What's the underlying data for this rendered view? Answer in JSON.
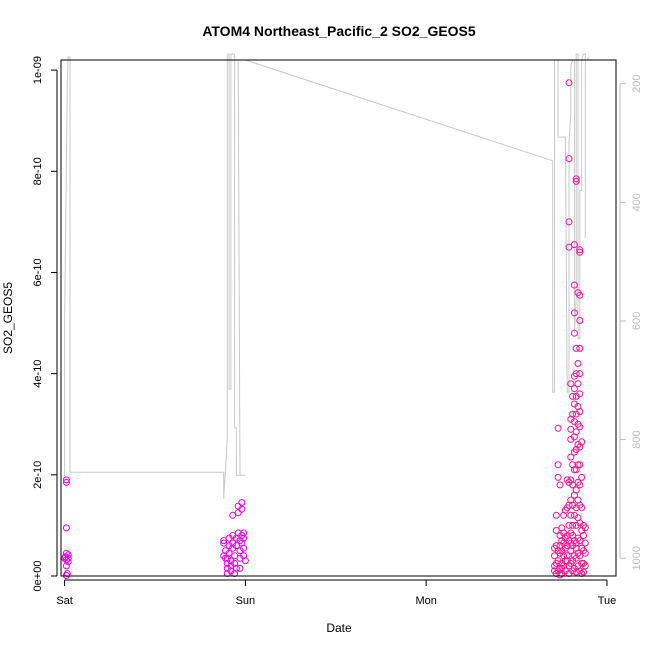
{
  "chart_data": {
    "type": "scatter",
    "title": "ATOM4 Northeast_Pacific_2 SO2_GEOS5",
    "xlabel": "Date",
    "ylabel": "SO2_GEOS5",
    "x_ticks": [
      "Sat",
      "Sun",
      "Mon",
      "Tue"
    ],
    "x_range_days": [
      -0.02,
      3.05
    ],
    "y_ticks": [
      "0e+00",
      "2e-10",
      "4e-10",
      "6e-10",
      "8e-10",
      "1e-09"
    ],
    "ylim": [
      0,
      1.02e-09
    ],
    "y2_ticks": [
      "200",
      "400",
      "600",
      "800",
      "1000"
    ],
    "y2lim": [
      1030,
      160
    ],
    "y2_axis": "pressure",
    "grid": false,
    "colors": {
      "magenta": "#ee00ee",
      "pink": "#ff1493",
      "pressure_line": "#c8c8c8",
      "axis": "#000000",
      "right_axis": "#bdbdbd"
    },
    "series": [
      {
        "color": "#ee00ee",
        "marker": "circle-open",
        "points": [
          [
            0.01,
            1.9e-10
          ],
          [
            0.01,
            1.85e-10
          ],
          [
            0.01,
            9.5e-11
          ],
          [
            0.01,
            4.5e-11
          ],
          [
            0.005,
            3.8e-11
          ],
          [
            0.0,
            3.5e-11
          ],
          [
            0.01,
            3.2e-11
          ],
          [
            0.01,
            2e-11
          ],
          [
            0.02,
            3.5e-11
          ],
          [
            0.02,
            2.8e-11
          ],
          [
            0.015,
            5e-12
          ],
          [
            0.01,
            1e-12
          ],
          [
            0.02,
            4.2e-11
          ],
          [
            0.0,
            3.6e-11
          ],
          [
            0.88,
            7e-11
          ],
          [
            0.88,
            6.5e-11
          ],
          [
            0.89,
            5e-11
          ],
          [
            0.89,
            3.5e-11
          ],
          [
            0.9,
            2.5e-11
          ],
          [
            0.9,
            1.5e-11
          ],
          [
            0.9,
            5e-12
          ],
          [
            0.91,
            7.5e-11
          ],
          [
            0.91,
            6e-11
          ],
          [
            0.91,
            4.5e-11
          ],
          [
            0.92,
            3e-11
          ],
          [
            0.92,
            2e-11
          ],
          [
            0.92,
            1e-11
          ],
          [
            0.93,
            8e-11
          ],
          [
            0.93,
            6.5e-11
          ],
          [
            0.93,
            5.5e-11
          ],
          [
            0.94,
            4e-11
          ],
          [
            0.94,
            2.5e-11
          ],
          [
            0.95,
            1.5e-11
          ],
          [
            0.95,
            7.5e-11
          ],
          [
            0.95,
            6e-11
          ],
          [
            0.96,
            1.38e-10
          ],
          [
            0.96,
            1.25e-10
          ],
          [
            0.96,
            8.5e-11
          ],
          [
            0.97,
            7e-11
          ],
          [
            0.97,
            5e-11
          ],
          [
            0.97,
            3.5e-11
          ],
          [
            0.98,
            1.45e-10
          ],
          [
            0.98,
            8e-11
          ],
          [
            0.98,
            6.5e-11
          ],
          [
            0.98,
            1.32e-10
          ],
          [
            0.99,
            7.5e-11
          ],
          [
            0.99,
            5.5e-11
          ],
          [
            0.99,
            4e-11
          ],
          [
            1.0,
            3e-11
          ],
          [
            0.99,
            8.5e-11
          ],
          [
            0.97,
            1.5e-11
          ],
          [
            0.9,
            3.5e-11
          ],
          [
            0.88,
            4e-11
          ],
          [
            0.94,
            5e-12
          ],
          [
            0.93,
            1.2e-10
          ]
        ]
      },
      {
        "color": "#ff1493",
        "marker": "circle-open",
        "points": [
          [
            2.73,
            2.92e-10
          ],
          [
            2.73,
            2.2e-10
          ],
          [
            2.73,
            1.95e-10
          ],
          [
            2.72,
            1.2e-10
          ],
          [
            2.72,
            9e-11
          ],
          [
            2.72,
            6e-11
          ],
          [
            2.71,
            5.5e-11
          ],
          [
            2.71,
            4e-11
          ],
          [
            2.71,
            2e-11
          ],
          [
            2.71,
            1e-11
          ],
          [
            2.72,
            5e-12
          ],
          [
            2.73,
            5e-11
          ],
          [
            2.73,
            3e-11
          ],
          [
            2.74,
            8e-11
          ],
          [
            2.74,
            6e-11
          ],
          [
            2.74,
            4.5e-11
          ],
          [
            2.74,
            1.5e-11
          ],
          [
            2.74,
            2e-12
          ],
          [
            2.75,
            9.5e-11
          ],
          [
            2.75,
            7e-11
          ],
          [
            2.75,
            5e-11
          ],
          [
            2.75,
            2.5e-11
          ],
          [
            2.75,
            5e-12
          ],
          [
            2.76,
            8.5e-11
          ],
          [
            2.76,
            6.5e-11
          ],
          [
            2.76,
            4e-11
          ],
          [
            2.76,
            2e-11
          ],
          [
            2.77,
            7.5e-11
          ],
          [
            2.77,
            5.5e-11
          ],
          [
            2.77,
            3e-11
          ],
          [
            2.77,
            1e-11
          ],
          [
            2.78,
            1.9e-10
          ],
          [
            2.78,
            1.35e-10
          ],
          [
            2.78,
            8e-11
          ],
          [
            2.78,
            6e-11
          ],
          [
            2.78,
            4e-11
          ],
          [
            2.79,
            1.85e-10
          ],
          [
            2.79,
            1.4e-10
          ],
          [
            2.79,
            1e-10
          ],
          [
            2.79,
            7e-11
          ],
          [
            2.79,
            2e-11
          ],
          [
            2.79,
            9.75e-10
          ],
          [
            2.79,
            8.25e-10
          ],
          [
            2.79,
            7e-10
          ],
          [
            2.79,
            6.5e-10
          ],
          [
            2.8,
            3.8e-10
          ],
          [
            2.8,
            3.1e-10
          ],
          [
            2.8,
            2.9e-10
          ],
          [
            2.8,
            2.7e-10
          ],
          [
            2.8,
            2.35e-10
          ],
          [
            2.8,
            1.9e-10
          ],
          [
            2.8,
            1.5e-10
          ],
          [
            2.8,
            1.2e-10
          ],
          [
            2.8,
            8.5e-11
          ],
          [
            2.8,
            5e-11
          ],
          [
            2.8,
            2.5e-11
          ],
          [
            2.81,
            3.55e-10
          ],
          [
            2.81,
            3.2e-10
          ],
          [
            2.81,
            2.2e-10
          ],
          [
            2.81,
            1.8e-10
          ],
          [
            2.81,
            1.4e-10
          ],
          [
            2.81,
            1e-10
          ],
          [
            2.81,
            6e-11
          ],
          [
            2.81,
            3e-11
          ],
          [
            2.81,
            1e-11
          ],
          [
            2.82,
            6.55e-10
          ],
          [
            2.82,
            5.75e-10
          ],
          [
            2.82,
            5.2e-10
          ],
          [
            2.82,
            4.8e-10
          ],
          [
            2.82,
            3.95e-10
          ],
          [
            2.82,
            3.7e-10
          ],
          [
            2.82,
            3.4e-10
          ],
          [
            2.82,
            3.05e-10
          ],
          [
            2.82,
            2.75e-10
          ],
          [
            2.82,
            2.45e-10
          ],
          [
            2.82,
            2.1e-10
          ],
          [
            2.82,
            1.6e-10
          ],
          [
            2.82,
            1.2e-10
          ],
          [
            2.82,
            7e-11
          ],
          [
            2.82,
            4e-11
          ],
          [
            2.82,
            1.5e-11
          ],
          [
            2.83,
            7.85e-10
          ],
          [
            2.83,
            7.8e-10
          ],
          [
            2.83,
            4.5e-10
          ],
          [
            2.83,
            4e-10
          ],
          [
            2.83,
            3.55e-10
          ],
          [
            2.83,
            3.2e-10
          ],
          [
            2.83,
            2.85e-10
          ],
          [
            2.83,
            2.5e-10
          ],
          [
            2.83,
            2.1e-10
          ],
          [
            2.83,
            1.7e-10
          ],
          [
            2.83,
            1.35e-10
          ],
          [
            2.83,
            1e-10
          ],
          [
            2.83,
            6.5e-11
          ],
          [
            2.83,
            3.5e-11
          ],
          [
            2.83,
            8e-12
          ],
          [
            2.84,
            5.6e-10
          ],
          [
            2.84,
            4.2e-10
          ],
          [
            2.84,
            3.8e-10
          ],
          [
            2.84,
            3.35e-10
          ],
          [
            2.84,
            3e-10
          ],
          [
            2.84,
            2.6e-10
          ],
          [
            2.84,
            2.2e-10
          ],
          [
            2.84,
            1.85e-10
          ],
          [
            2.84,
            1.5e-10
          ],
          [
            2.84,
            1.15e-10
          ],
          [
            2.84,
            7.5e-11
          ],
          [
            2.84,
            4.5e-11
          ],
          [
            2.84,
            2e-11
          ],
          [
            2.85,
            6.45e-10
          ],
          [
            2.85,
            6.4e-10
          ],
          [
            2.85,
            5.55e-10
          ],
          [
            2.85,
            5.05e-10
          ],
          [
            2.85,
            4.5e-10
          ],
          [
            2.85,
            4e-10
          ],
          [
            2.85,
            3.6e-10
          ],
          [
            2.85,
            3.25e-10
          ],
          [
            2.85,
            2.95e-10
          ],
          [
            2.85,
            2.55e-10
          ],
          [
            2.85,
            2.2e-10
          ],
          [
            2.85,
            1.8e-10
          ],
          [
            2.85,
            1.4e-10
          ],
          [
            2.85,
            1.05e-10
          ],
          [
            2.85,
            7e-11
          ],
          [
            2.85,
            4e-11
          ],
          [
            2.85,
            1e-11
          ],
          [
            2.86,
            2.65e-10
          ],
          [
            2.86,
            1.95e-10
          ],
          [
            2.86,
            1.35e-10
          ],
          [
            2.86,
            9e-11
          ],
          [
            2.86,
            5.5e-11
          ],
          [
            2.86,
            2.5e-11
          ],
          [
            2.86,
            5e-12
          ],
          [
            2.87,
            1e-10
          ],
          [
            2.87,
            8e-11
          ],
          [
            2.87,
            5e-11
          ],
          [
            2.87,
            2.5e-11
          ],
          [
            2.87,
            8e-12
          ],
          [
            2.88,
            9.5e-11
          ],
          [
            2.88,
            6.5e-11
          ],
          [
            2.88,
            4.5e-11
          ],
          [
            2.88,
            2e-11
          ],
          [
            2.79,
            5e-12
          ],
          [
            2.76,
            1.2e-10
          ],
          [
            2.77,
            1.3e-10
          ],
          [
            2.74,
            1.8e-10
          ],
          [
            2.75,
            1.5e-11
          ],
          [
            2.72,
            2.5e-11
          ],
          [
            2.73,
            1e-11
          ],
          [
            2.78,
            3e-11
          ],
          [
            2.8,
            6.5e-11
          ],
          [
            2.81,
            8e-11
          ],
          [
            2.83,
            5.5e-11
          ]
        ]
      }
    ],
    "pressure_line": [
      [
        0.0,
        865
      ],
      [
        0.0,
        600
      ],
      [
        0.015,
        200
      ],
      [
        0.02,
        155
      ],
      [
        0.03,
        155
      ],
      [
        0.03,
        855
      ],
      [
        0.88,
        855
      ],
      [
        0.88,
        900
      ],
      [
        0.9,
        800
      ],
      [
        0.9,
        150
      ],
      [
        0.91,
        150
      ],
      [
        0.91,
        715
      ],
      [
        0.92,
        715
      ],
      [
        0.92,
        150
      ],
      [
        0.93,
        150
      ],
      [
        0.94,
        150
      ],
      [
        0.94,
        780
      ],
      [
        0.95,
        780
      ],
      [
        0.95,
        860
      ],
      [
        0.96,
        860
      ],
      [
        0.96,
        860
      ],
      [
        1.0,
        860
      ],
      [
        0.97,
        860
      ],
      [
        0.96,
        160
      ],
      [
        0.97,
        160
      ],
      [
        1.0,
        160
      ],
      [
        2.7,
        330
      ],
      [
        2.7,
        720
      ],
      [
        2.71,
        720
      ],
      [
        2.71,
        160
      ],
      [
        2.73,
        160
      ],
      [
        2.73,
        290
      ],
      [
        2.75,
        290
      ],
      [
        2.77,
        290
      ],
      [
        2.78,
        720
      ],
      [
        2.79,
        720
      ],
      [
        2.79,
        300
      ],
      [
        2.8,
        250
      ],
      [
        2.8,
        170
      ],
      [
        2.81,
        160
      ],
      [
        2.82,
        160
      ],
      [
        2.82,
        620
      ],
      [
        2.83,
        560
      ],
      [
        2.83,
        150
      ],
      [
        2.84,
        150
      ],
      [
        2.84,
        630
      ],
      [
        2.85,
        630
      ],
      [
        2.85,
        380
      ],
      [
        2.86,
        380
      ],
      [
        2.86,
        160
      ],
      [
        2.87,
        150
      ],
      [
        2.88,
        150
      ],
      [
        2.88,
        460
      ],
      [
        2.88,
        160
      ],
      [
        2.89,
        160
      ],
      [
        2.9,
        155
      ]
    ]
  }
}
